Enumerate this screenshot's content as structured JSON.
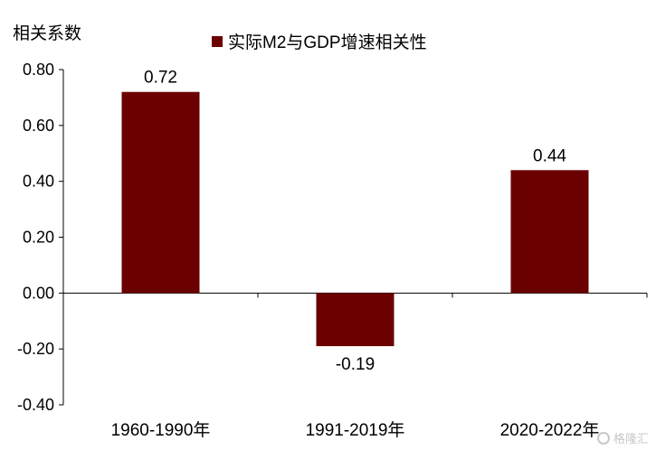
{
  "chart_data": {
    "type": "bar",
    "ylabel": "相关系数",
    "categories": [
      "1960-1990年",
      "1991-2019年",
      "2020-2022年"
    ],
    "series": [
      {
        "name": "实际M2与GDP增速相关性",
        "values": [
          0.72,
          -0.19,
          0.44
        ],
        "color": "#6b0000"
      }
    ],
    "data_labels": [
      "0.72",
      "-0.19",
      "0.44"
    ],
    "ylim": [
      -0.4,
      0.8
    ],
    "yticks": [
      "0.80",
      "0.60",
      "0.40",
      "0.20",
      "0.00",
      "-0.20",
      "-0.40"
    ],
    "grid": false,
    "legend_position": "top"
  },
  "watermark": "格隆汇"
}
